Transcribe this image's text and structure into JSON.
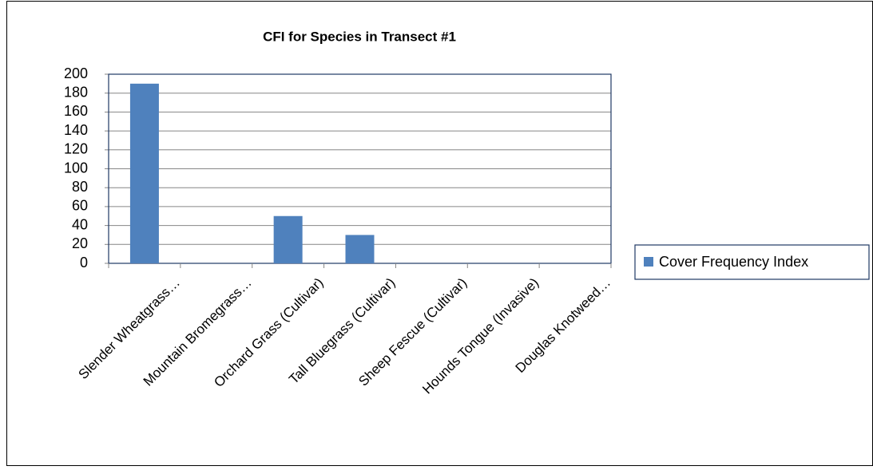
{
  "chart_data": {
    "type": "bar",
    "title": "CFI for Species in Transect #1",
    "categories": [
      "Slender Wheatgrass…",
      "Mountain Bromegrass…",
      "Orchard Grass (Cultivar)",
      "Tall Bluegrass (Cultivar)",
      "Sheep Fescue (Cultivar)",
      "Hounds Tongue (Invasive)",
      "Douglas Knotweed…"
    ],
    "series": [
      {
        "name": "Cover Frequency Index",
        "color": "#4f81bd",
        "values": [
          190,
          0,
          50,
          30,
          0,
          0,
          0
        ]
      }
    ],
    "ylim": [
      0,
      200
    ],
    "yticks": [
      0,
      20,
      40,
      60,
      80,
      100,
      120,
      140,
      160,
      180,
      200
    ],
    "grid": true,
    "legend": "right"
  }
}
